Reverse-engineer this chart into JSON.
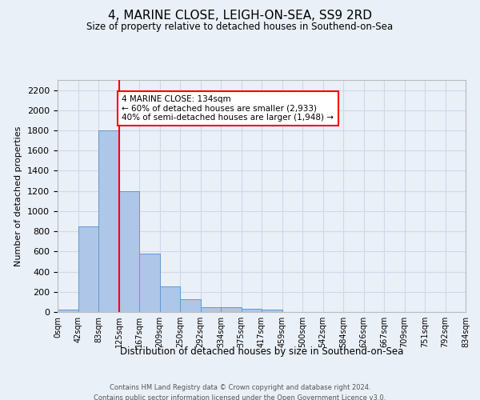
{
  "title": "4, MARINE CLOSE, LEIGH-ON-SEA, SS9 2RD",
  "subtitle": "Size of property relative to detached houses in Southend-on-Sea",
  "xlabel": "Distribution of detached houses by size in Southend-on-Sea",
  "ylabel": "Number of detached properties",
  "bar_values": [
    25,
    850,
    1800,
    1200,
    580,
    255,
    130,
    45,
    45,
    30,
    20,
    0,
    0,
    0,
    0,
    0,
    0,
    0,
    0,
    0
  ],
  "bin_labels": [
    "0sqm",
    "42sqm",
    "83sqm",
    "125sqm",
    "167sqm",
    "209sqm",
    "250sqm",
    "292sqm",
    "334sqm",
    "375sqm",
    "417sqm",
    "459sqm",
    "500sqm",
    "542sqm",
    "584sqm",
    "626sqm",
    "667sqm",
    "709sqm",
    "751sqm",
    "792sqm",
    "834sqm"
  ],
  "bar_color": "#aec6e8",
  "bar_edge_color": "#5b9bd5",
  "grid_color": "#d0d8e8",
  "background_color": "#eaf0f8",
  "red_line_x": 3,
  "annotation_text": "4 MARINE CLOSE: 134sqm\n← 60% of detached houses are smaller (2,933)\n40% of semi-detached houses are larger (1,948) →",
  "annotation_box_color": "white",
  "annotation_box_edge": "red",
  "ylim": [
    0,
    2300
  ],
  "yticks": [
    0,
    200,
    400,
    600,
    800,
    1000,
    1200,
    1400,
    1600,
    1800,
    2000,
    2200
  ],
  "footer_line1": "Contains HM Land Registry data © Crown copyright and database right 2024.",
  "footer_line2": "Contains public sector information licensed under the Open Government Licence v3.0."
}
